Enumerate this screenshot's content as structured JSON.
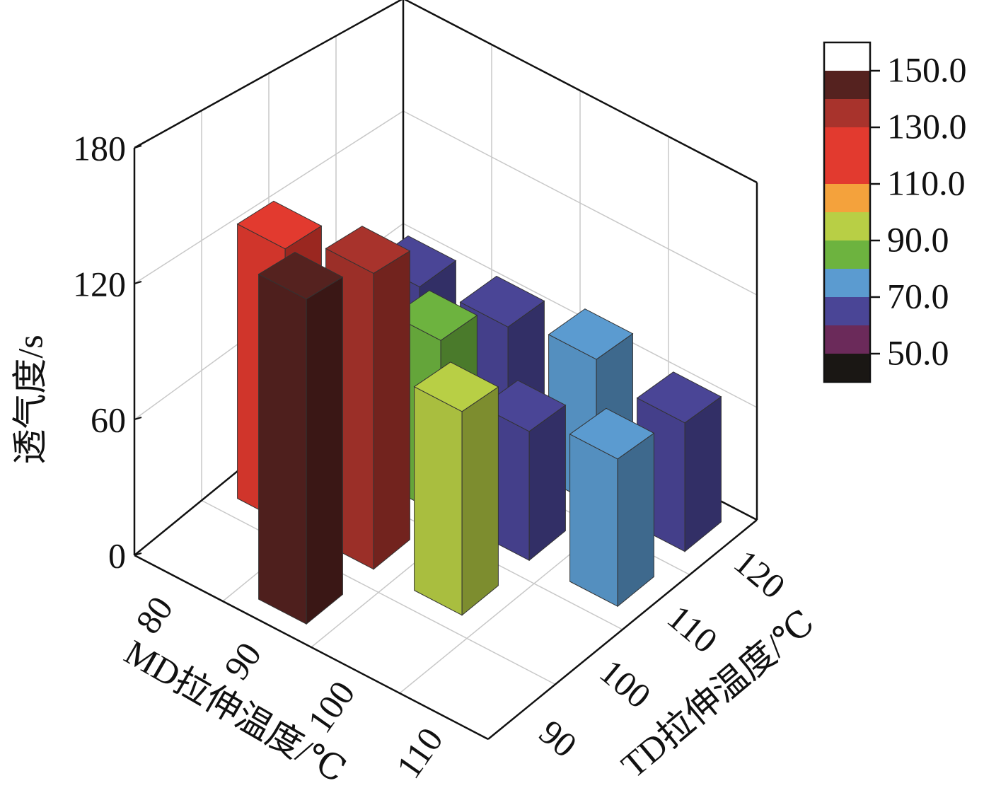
{
  "chart_data": {
    "type": "bar3d",
    "x_label": "MD拉伸温度/℃",
    "y_label": "TD拉伸温度/℃",
    "z_label": "透气度/s",
    "x_categories": [
      "80",
      "90",
      "100",
      "110"
    ],
    "y_categories": [
      "90",
      "100",
      "110",
      "120"
    ],
    "values": [
      [
        null,
        128,
        null,
        65
      ],
      [
        145,
        138,
        85,
        68
      ],
      [
        null,
        95,
        63,
        75
      ],
      [
        null,
        null,
        72,
        66
      ]
    ],
    "zlim": [
      0,
      180
    ],
    "zticks": [
      0,
      60,
      120,
      180
    ],
    "grid": true,
    "colorbar": {
      "clim": [
        40,
        160
      ],
      "bounds": [
        40,
        50,
        60,
        70,
        80,
        90,
        100,
        110,
        130,
        140,
        150,
        160
      ],
      "colors": [
        "#1a1714",
        "#6b2a5a",
        "#4a4596",
        "#5b9bd0",
        "#6db33f",
        "#b8cf45",
        "#f4a23c",
        "#e23a2f",
        "#a8332c",
        "#55221f",
        "#ffffff"
      ],
      "ticks": [
        {
          "value": 50,
          "label": "50.0"
        },
        {
          "value": 70,
          "label": "70.0"
        },
        {
          "value": 90,
          "label": "90.0"
        },
        {
          "value": 110,
          "label": "110.0"
        },
        {
          "value": 130,
          "label": "130.0"
        },
        {
          "value": 150,
          "label": "150.0"
        }
      ]
    }
  }
}
